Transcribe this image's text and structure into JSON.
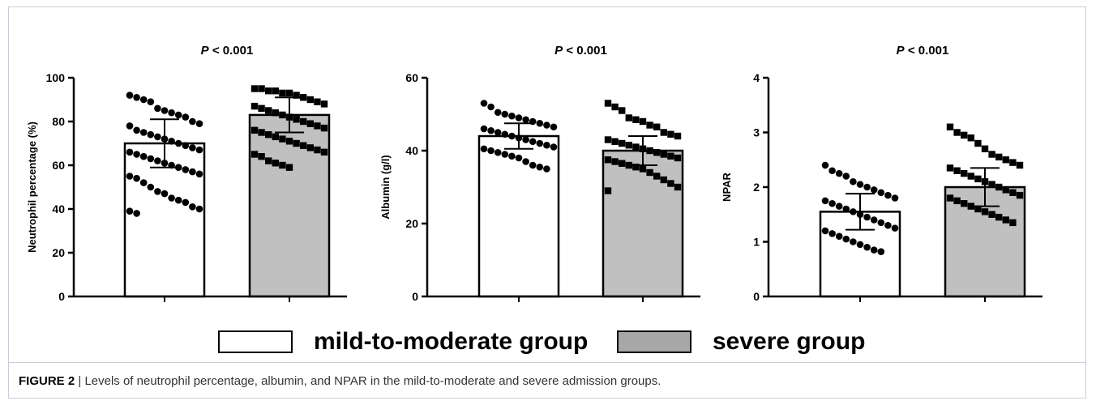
{
  "colors": {
    "mild": "#ffffff",
    "severe": "#c0c0c0",
    "ink": "#000000"
  },
  "legend": {
    "mild_label": "mild-to-moderate group",
    "severe_label": "severe group"
  },
  "caption": {
    "figure_no": "FIGURE 2",
    "separator": "|",
    "text": "Levels of neutrophil percentage, albumin, and NPAR in the mild-to-moderate and severe admission groups."
  },
  "chart_data": [
    {
      "type": "bar",
      "title_italic": "P",
      "title_rest": " < 0.001",
      "xlabel": "",
      "ylabel": "Neutrophil percentage (%)",
      "ylim": [
        0,
        100
      ],
      "yticks": [
        0,
        20,
        40,
        60,
        80,
        100
      ],
      "series": [
        {
          "name": "mild-to-moderate group",
          "marker": "circle",
          "mean": 70,
          "sd": 11,
          "points": [
            91,
            92,
            90,
            89,
            85,
            86,
            84,
            83,
            82,
            80,
            79,
            78,
            76,
            75,
            74,
            73,
            72,
            71,
            70,
            69,
            68,
            67,
            66,
            65,
            64,
            63,
            62,
            61,
            60,
            59,
            58,
            57,
            56,
            55,
            54,
            52,
            50,
            48,
            47,
            45,
            44,
            43,
            41,
            40,
            39,
            38
          ]
        },
        {
          "name": "severe group",
          "marker": "square",
          "mean": 83,
          "sd": 8,
          "points": [
            95,
            95,
            94,
            94,
            93,
            93,
            92,
            91,
            90,
            89,
            88,
            87,
            86,
            85,
            84,
            83,
            82,
            81,
            80,
            79,
            78,
            77,
            76,
            75,
            74,
            73,
            72,
            71,
            70,
            69,
            68,
            67,
            66,
            65,
            64,
            62,
            61,
            60,
            59
          ]
        }
      ]
    },
    {
      "type": "bar",
      "title_italic": "P",
      "title_rest": " < 0.001",
      "xlabel": "",
      "ylabel": "Albumin (g/l)",
      "ylim": [
        0,
        60
      ],
      "yticks": [
        0,
        20,
        40,
        60
      ],
      "series": [
        {
          "name": "mild-to-moderate group",
          "marker": "circle",
          "mean": 44,
          "sd": 3.5,
          "points": [
            53,
            52,
            50.5,
            50,
            49.5,
            49,
            48.5,
            48,
            47.5,
            47,
            46.5,
            46,
            45.5,
            45,
            44.5,
            44,
            43.5,
            43,
            42.5,
            42,
            41.5,
            41,
            40.5,
            40,
            39.5,
            39,
            38.5,
            38,
            37,
            36,
            35.5,
            35
          ]
        },
        {
          "name": "severe group",
          "marker": "square",
          "mean": 40,
          "sd": 4,
          "points": [
            53,
            52,
            51,
            49,
            48.5,
            48,
            47,
            46.5,
            45,
            44.5,
            44,
            43,
            42.5,
            42,
            41.5,
            41,
            40.5,
            40,
            39.5,
            39,
            38.5,
            38,
            37.5,
            37,
            36.5,
            36,
            35.5,
            35,
            34,
            33,
            32,
            31,
            30,
            29
          ]
        }
      ]
    },
    {
      "type": "bar",
      "title_italic": "P",
      "title_rest": " < 0.001",
      "xlabel": "",
      "ylabel": "NPAR",
      "ylim": [
        0,
        4
      ],
      "yticks": [
        0,
        1,
        2,
        3,
        4
      ],
      "series": [
        {
          "name": "mild-to-moderate group",
          "marker": "circle",
          "mean": 1.55,
          "sd": 0.33,
          "points": [
            2.4,
            2.3,
            2.25,
            2.2,
            2.1,
            2.05,
            2.0,
            1.95,
            1.9,
            1.85,
            1.8,
            1.75,
            1.7,
            1.65,
            1.6,
            1.55,
            1.5,
            1.45,
            1.4,
            1.35,
            1.3,
            1.25,
            1.2,
            1.15,
            1.1,
            1.05,
            1.0,
            0.95,
            0.9,
            0.85,
            0.82
          ]
        },
        {
          "name": "severe group",
          "marker": "square",
          "mean": 2.0,
          "sd": 0.35,
          "points": [
            3.1,
            3.0,
            2.95,
            2.9,
            2.8,
            2.7,
            2.6,
            2.55,
            2.5,
            2.45,
            2.4,
            2.35,
            2.3,
            2.25,
            2.2,
            2.15,
            2.1,
            2.05,
            2.0,
            1.95,
            1.9,
            1.85,
            1.8,
            1.75,
            1.7,
            1.65,
            1.6,
            1.55,
            1.5,
            1.45,
            1.4,
            1.35
          ]
        }
      ]
    }
  ]
}
